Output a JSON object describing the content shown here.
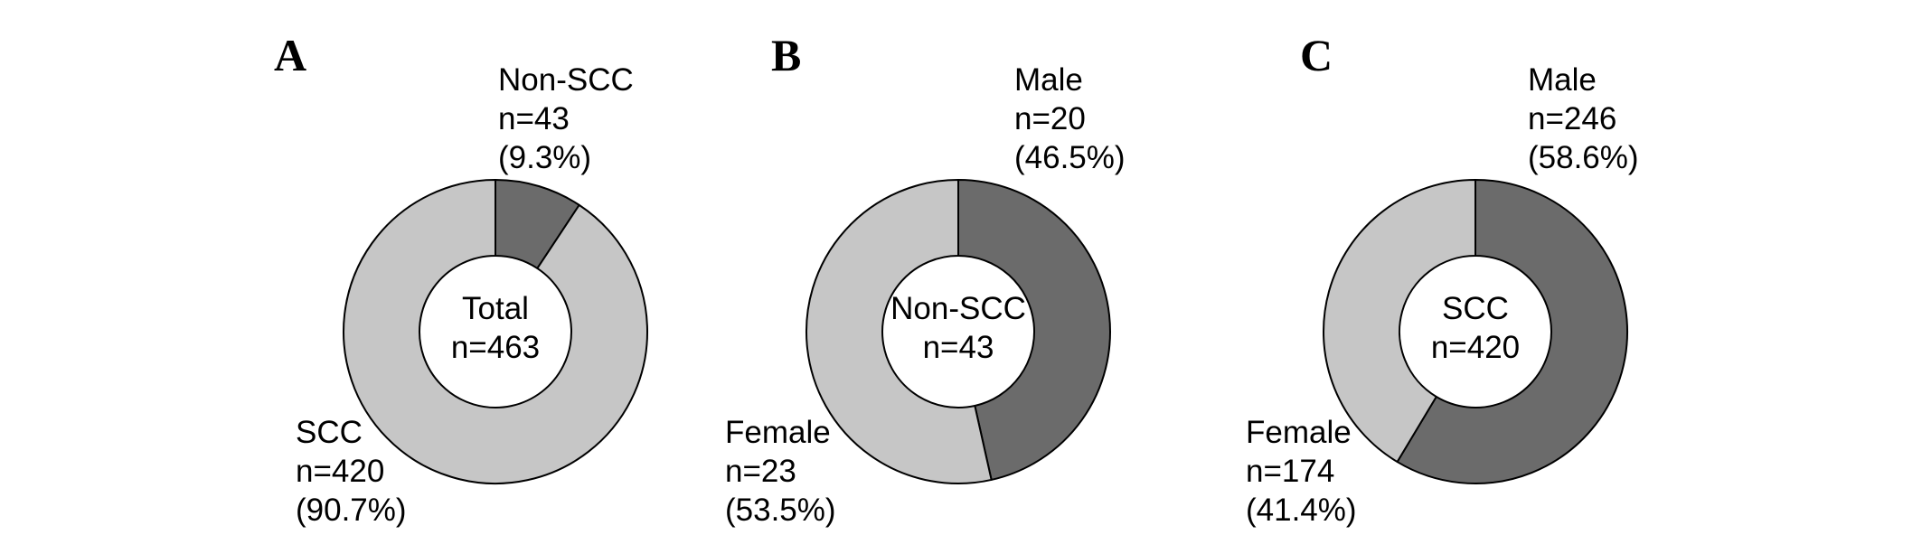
{
  "palette": {
    "light_gray": "#c6c6c6",
    "dark_gray": "#6b6b6b",
    "outline": "#000000",
    "text": "#000000",
    "background": "#ffffff"
  },
  "panels": [
    {
      "letter": "A",
      "center_line1": "Total",
      "center_line2": "n=463",
      "top_label_line1": "Non-SCC",
      "top_label_line2": "n=43",
      "top_label_line3": "(9.3%)",
      "bottom_label_line1": "SCC",
      "bottom_label_line2": "n=420",
      "bottom_label_line3": "(90.7%)"
    },
    {
      "letter": "B",
      "center_line1": "Non-SCC",
      "center_line2": "n=43",
      "top_label_line1": "Male",
      "top_label_line2": "n=20",
      "top_label_line3": "(46.5%)",
      "bottom_label_line1": "Female",
      "bottom_label_line2": "n=23",
      "bottom_label_line3": "(53.5%)"
    },
    {
      "letter": "C",
      "center_line1": "SCC",
      "center_line2": "n=420",
      "top_label_line1": "Male",
      "top_label_line2": "n=246",
      "top_label_line3": "(58.6%)",
      "bottom_label_line1": "Female",
      "bottom_label_line2": "n=174",
      "bottom_label_line3": "(41.4%)"
    }
  ],
  "chart_data": [
    {
      "type": "pie",
      "subtype": "donut",
      "panel": "A",
      "center_label": "Total n=463",
      "total": 463,
      "hole_ratio": 0.5,
      "start_angle": "12 o'clock",
      "direction": "clockwise",
      "slices": [
        {
          "label": "Non-SCC",
          "n": 43,
          "pct": 9.3,
          "shade": "dark_gray"
        },
        {
          "label": "SCC",
          "n": 420,
          "pct": 90.7,
          "shade": "light_gray"
        }
      ]
    },
    {
      "type": "pie",
      "subtype": "donut",
      "panel": "B",
      "center_label": "Non-SCC n=43",
      "total": 43,
      "hole_ratio": 0.5,
      "start_angle": "12 o'clock",
      "direction": "clockwise",
      "slices": [
        {
          "label": "Male",
          "n": 20,
          "pct": 46.5,
          "shade": "dark_gray"
        },
        {
          "label": "Female",
          "n": 23,
          "pct": 53.5,
          "shade": "light_gray"
        }
      ]
    },
    {
      "type": "pie",
      "subtype": "donut",
      "panel": "C",
      "center_label": "SCC n=420",
      "total": 420,
      "hole_ratio": 0.5,
      "start_angle": "12 o'clock",
      "direction": "clockwise",
      "slices": [
        {
          "label": "Male",
          "n": 246,
          "pct": 58.6,
          "shade": "dark_gray"
        },
        {
          "label": "Female",
          "n": 174,
          "pct": 41.4,
          "shade": "light_gray"
        }
      ]
    }
  ]
}
